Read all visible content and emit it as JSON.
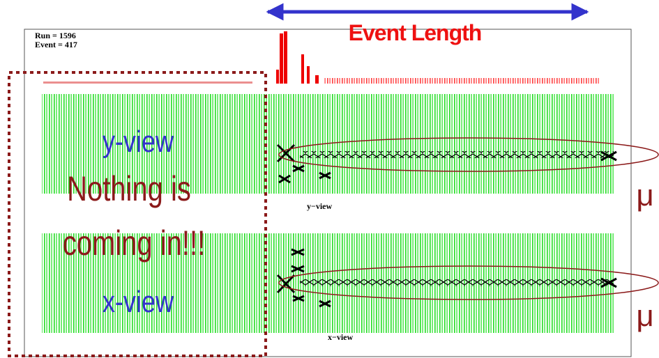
{
  "header": {
    "run": "Run = 1596",
    "event": "Event = 417"
  },
  "event_length": "Event Length",
  "message": [
    "Nothing is",
    "coming in!!!"
  ],
  "views": [
    {
      "label": "y-view",
      "caption": "y−view",
      "particle": "μ"
    },
    {
      "label": "x-view",
      "caption": "x−view",
      "particle": "μ"
    }
  ]
}
